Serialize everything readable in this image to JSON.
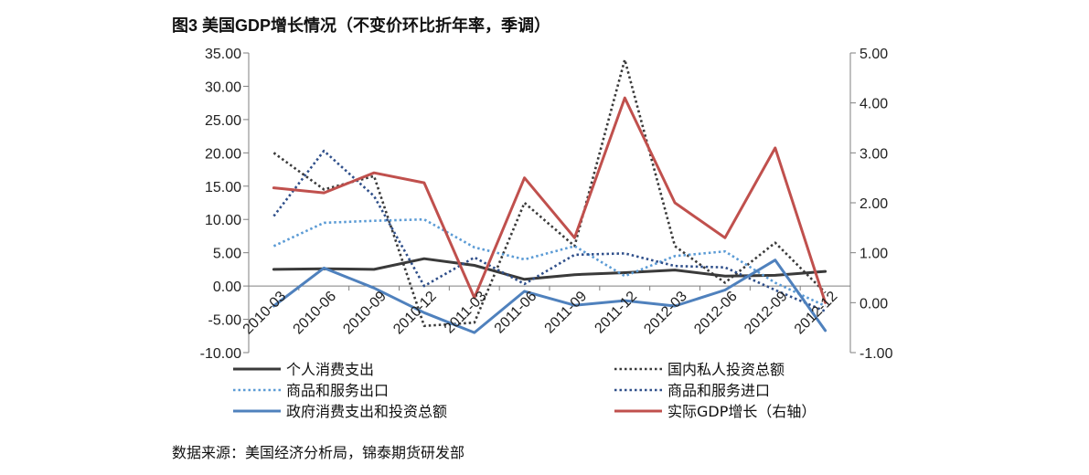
{
  "title": "图3 美国GDP增长情况（不变价环比折年率，季调）",
  "source": "数据来源：美国经济分析局，锦泰期货研发部",
  "colors": {
    "axis": "#7f7f7f",
    "personal": "#3a3a3a",
    "private_invest": "#3a3a3a",
    "exports": "#5b9bd5",
    "imports": "#2f4f8a",
    "government": "#4f81bd",
    "gdp": "#c0504d"
  },
  "chart_data": {
    "type": "line",
    "categories": [
      "2010-03",
      "2010-06",
      "2010-09",
      "2010-12",
      "2011-03",
      "2011-06",
      "2011-09",
      "2011-12",
      "2012-03",
      "2012-06",
      "2012-09",
      "2012-12"
    ],
    "y_left": {
      "min": -10,
      "max": 35,
      "step": 5,
      "tick_labels": [
        "-10.00",
        "-5.00",
        "0.00",
        "5.00",
        "10.00",
        "15.00",
        "20.00",
        "25.00",
        "30.00",
        "35.00"
      ]
    },
    "y_right": {
      "min": -1,
      "max": 5,
      "step": 1,
      "tick_labels": [
        "-1.00",
        "0.00",
        "1.00",
        "2.00",
        "3.00",
        "4.00",
        "5.00"
      ]
    },
    "series": [
      {
        "name": "个人消费支出",
        "axis": "left",
        "style": "solid",
        "color": "#3a3a3a",
        "values": [
          2.5,
          2.6,
          2.5,
          4.1,
          3.1,
          1.0,
          1.7,
          2.0,
          2.4,
          1.5,
          1.6,
          2.2
        ]
      },
      {
        "name": "国内私人投资总额",
        "axis": "left",
        "style": "dotted",
        "color": "#3a3a3a",
        "values": [
          20.0,
          14.5,
          16.5,
          -6.0,
          -5.5,
          12.5,
          6.0,
          34.0,
          6.0,
          0.5,
          6.5,
          -1.0
        ]
      },
      {
        "name": "商品和服务出口",
        "axis": "left",
        "style": "dotted",
        "color": "#5b9bd5",
        "values": [
          6.0,
          9.5,
          9.8,
          10.0,
          5.8,
          4.0,
          6.0,
          1.5,
          4.5,
          5.2,
          0.5,
          -3.0
        ]
      },
      {
        "name": "商品和服务进口",
        "axis": "left",
        "style": "dotted",
        "color": "#2f4f8a",
        "values": [
          10.5,
          20.3,
          13.5,
          0.0,
          4.3,
          0.3,
          4.7,
          4.9,
          3.0,
          2.8,
          -0.6,
          -3.8
        ]
      },
      {
        "name": "政府消费支出和投资总额",
        "axis": "left",
        "style": "solid",
        "color": "#4f81bd",
        "values": [
          -3.0,
          2.7,
          -0.3,
          -4.0,
          -7.0,
          -0.8,
          -2.9,
          -2.2,
          -3.0,
          -0.6,
          3.9,
          -6.7
        ]
      },
      {
        "name": "实际GDP增长（右轴）",
        "axis": "right",
        "style": "solid",
        "color": "#c0504d",
        "values": [
          2.3,
          2.2,
          2.6,
          2.4,
          0.1,
          2.5,
          1.3,
          4.1,
          2.0,
          1.3,
          3.1,
          0.0
        ]
      }
    ],
    "legend_position": "bottom",
    "grid": false
  }
}
